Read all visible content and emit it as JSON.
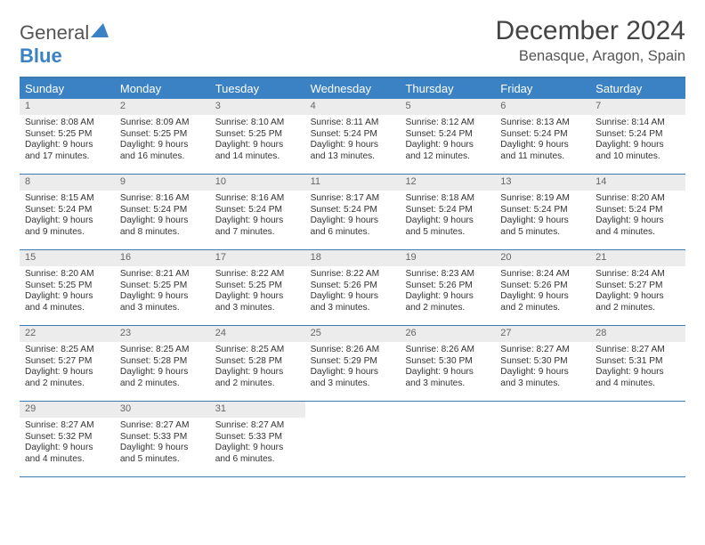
{
  "logo": {
    "text1": "General",
    "text2": "Blue"
  },
  "title": "December 2024",
  "location": "Benasque, Aragon, Spain",
  "colors": {
    "header_bg": "#3b82c4",
    "border": "#3b7bb0",
    "daynum_bg": "#ececec"
  },
  "day_labels": [
    "Sunday",
    "Monday",
    "Tuesday",
    "Wednesday",
    "Thursday",
    "Friday",
    "Saturday"
  ],
  "weeks": [
    [
      {
        "n": "1",
        "sr": "Sunrise: 8:08 AM",
        "ss": "Sunset: 5:25 PM",
        "d1": "Daylight: 9 hours",
        "d2": "and 17 minutes."
      },
      {
        "n": "2",
        "sr": "Sunrise: 8:09 AM",
        "ss": "Sunset: 5:25 PM",
        "d1": "Daylight: 9 hours",
        "d2": "and 16 minutes."
      },
      {
        "n": "3",
        "sr": "Sunrise: 8:10 AM",
        "ss": "Sunset: 5:25 PM",
        "d1": "Daylight: 9 hours",
        "d2": "and 14 minutes."
      },
      {
        "n": "4",
        "sr": "Sunrise: 8:11 AM",
        "ss": "Sunset: 5:24 PM",
        "d1": "Daylight: 9 hours",
        "d2": "and 13 minutes."
      },
      {
        "n": "5",
        "sr": "Sunrise: 8:12 AM",
        "ss": "Sunset: 5:24 PM",
        "d1": "Daylight: 9 hours",
        "d2": "and 12 minutes."
      },
      {
        "n": "6",
        "sr": "Sunrise: 8:13 AM",
        "ss": "Sunset: 5:24 PM",
        "d1": "Daylight: 9 hours",
        "d2": "and 11 minutes."
      },
      {
        "n": "7",
        "sr": "Sunrise: 8:14 AM",
        "ss": "Sunset: 5:24 PM",
        "d1": "Daylight: 9 hours",
        "d2": "and 10 minutes."
      }
    ],
    [
      {
        "n": "8",
        "sr": "Sunrise: 8:15 AM",
        "ss": "Sunset: 5:24 PM",
        "d1": "Daylight: 9 hours",
        "d2": "and 9 minutes."
      },
      {
        "n": "9",
        "sr": "Sunrise: 8:16 AM",
        "ss": "Sunset: 5:24 PM",
        "d1": "Daylight: 9 hours",
        "d2": "and 8 minutes."
      },
      {
        "n": "10",
        "sr": "Sunrise: 8:16 AM",
        "ss": "Sunset: 5:24 PM",
        "d1": "Daylight: 9 hours",
        "d2": "and 7 minutes."
      },
      {
        "n": "11",
        "sr": "Sunrise: 8:17 AM",
        "ss": "Sunset: 5:24 PM",
        "d1": "Daylight: 9 hours",
        "d2": "and 6 minutes."
      },
      {
        "n": "12",
        "sr": "Sunrise: 8:18 AM",
        "ss": "Sunset: 5:24 PM",
        "d1": "Daylight: 9 hours",
        "d2": "and 5 minutes."
      },
      {
        "n": "13",
        "sr": "Sunrise: 8:19 AM",
        "ss": "Sunset: 5:24 PM",
        "d1": "Daylight: 9 hours",
        "d2": "and 5 minutes."
      },
      {
        "n": "14",
        "sr": "Sunrise: 8:20 AM",
        "ss": "Sunset: 5:24 PM",
        "d1": "Daylight: 9 hours",
        "d2": "and 4 minutes."
      }
    ],
    [
      {
        "n": "15",
        "sr": "Sunrise: 8:20 AM",
        "ss": "Sunset: 5:25 PM",
        "d1": "Daylight: 9 hours",
        "d2": "and 4 minutes."
      },
      {
        "n": "16",
        "sr": "Sunrise: 8:21 AM",
        "ss": "Sunset: 5:25 PM",
        "d1": "Daylight: 9 hours",
        "d2": "and 3 minutes."
      },
      {
        "n": "17",
        "sr": "Sunrise: 8:22 AM",
        "ss": "Sunset: 5:25 PM",
        "d1": "Daylight: 9 hours",
        "d2": "and 3 minutes."
      },
      {
        "n": "18",
        "sr": "Sunrise: 8:22 AM",
        "ss": "Sunset: 5:26 PM",
        "d1": "Daylight: 9 hours",
        "d2": "and 3 minutes."
      },
      {
        "n": "19",
        "sr": "Sunrise: 8:23 AM",
        "ss": "Sunset: 5:26 PM",
        "d1": "Daylight: 9 hours",
        "d2": "and 2 minutes."
      },
      {
        "n": "20",
        "sr": "Sunrise: 8:24 AM",
        "ss": "Sunset: 5:26 PM",
        "d1": "Daylight: 9 hours",
        "d2": "and 2 minutes."
      },
      {
        "n": "21",
        "sr": "Sunrise: 8:24 AM",
        "ss": "Sunset: 5:27 PM",
        "d1": "Daylight: 9 hours",
        "d2": "and 2 minutes."
      }
    ],
    [
      {
        "n": "22",
        "sr": "Sunrise: 8:25 AM",
        "ss": "Sunset: 5:27 PM",
        "d1": "Daylight: 9 hours",
        "d2": "and 2 minutes."
      },
      {
        "n": "23",
        "sr": "Sunrise: 8:25 AM",
        "ss": "Sunset: 5:28 PM",
        "d1": "Daylight: 9 hours",
        "d2": "and 2 minutes."
      },
      {
        "n": "24",
        "sr": "Sunrise: 8:25 AM",
        "ss": "Sunset: 5:28 PM",
        "d1": "Daylight: 9 hours",
        "d2": "and 2 minutes."
      },
      {
        "n": "25",
        "sr": "Sunrise: 8:26 AM",
        "ss": "Sunset: 5:29 PM",
        "d1": "Daylight: 9 hours",
        "d2": "and 3 minutes."
      },
      {
        "n": "26",
        "sr": "Sunrise: 8:26 AM",
        "ss": "Sunset: 5:30 PM",
        "d1": "Daylight: 9 hours",
        "d2": "and 3 minutes."
      },
      {
        "n": "27",
        "sr": "Sunrise: 8:27 AM",
        "ss": "Sunset: 5:30 PM",
        "d1": "Daylight: 9 hours",
        "d2": "and 3 minutes."
      },
      {
        "n": "28",
        "sr": "Sunrise: 8:27 AM",
        "ss": "Sunset: 5:31 PM",
        "d1": "Daylight: 9 hours",
        "d2": "and 4 minutes."
      }
    ],
    [
      {
        "n": "29",
        "sr": "Sunrise: 8:27 AM",
        "ss": "Sunset: 5:32 PM",
        "d1": "Daylight: 9 hours",
        "d2": "and 4 minutes."
      },
      {
        "n": "30",
        "sr": "Sunrise: 8:27 AM",
        "ss": "Sunset: 5:33 PM",
        "d1": "Daylight: 9 hours",
        "d2": "and 5 minutes."
      },
      {
        "n": "31",
        "sr": "Sunrise: 8:27 AM",
        "ss": "Sunset: 5:33 PM",
        "d1": "Daylight: 9 hours",
        "d2": "and 6 minutes."
      },
      null,
      null,
      null,
      null
    ]
  ]
}
